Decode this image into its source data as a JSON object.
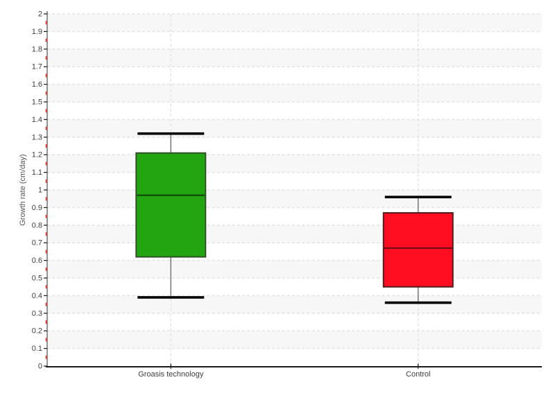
{
  "chart_data": {
    "type": "boxplot",
    "title": "",
    "ylabel": "Growth rate (cm/day)",
    "xlabel": "",
    "ylim": [
      0,
      2
    ],
    "ytick_step": 0.1,
    "minor_ytick_step": 0.05,
    "yticks": [
      0,
      0.1,
      0.2,
      0.3,
      0.4,
      0.5,
      0.6,
      0.7,
      0.8,
      0.9,
      1,
      1.1,
      1.2,
      1.3,
      1.4,
      1.5,
      1.6,
      1.7,
      1.8,
      1.9,
      2
    ],
    "yticklabels": [
      "0",
      "0.1",
      "0.2",
      "0.3",
      "0.4",
      "0.5",
      "0.6",
      "0.7",
      "0.8",
      "0.9",
      "1",
      "1.1",
      "1.2",
      "1.3",
      "1.4",
      "1.5",
      "1.6",
      "1.7",
      "1.8",
      "1.9",
      "2"
    ],
    "categories": [
      "Groasis technology",
      "Control"
    ],
    "series": [
      {
        "name": "Groasis technology",
        "min": 0.39,
        "q1": 0.62,
        "median": 0.97,
        "q3": 1.21,
        "max": 1.32,
        "fill": "#22a510",
        "border": "#31512a",
        "median_color": "#11530a"
      },
      {
        "name": "Control",
        "min": 0.36,
        "q1": 0.45,
        "median": 0.67,
        "q3": 0.87,
        "max": 0.96,
        "fill": "#ff0e21",
        "border": "#541a1c",
        "median_color": "#7a0a12"
      }
    ],
    "legend": "none",
    "grid": {
      "horizontal_dashed": true,
      "vertical_dashed_at_categories": true,
      "alternating_bands": true
    }
  },
  "colors": {
    "band": "#f7f7f7",
    "gridline": "#e3e3e3",
    "x_axis": "#1a1a1a",
    "y_axis": "#666666",
    "major_tick": "#222222",
    "minor_tick": "#ff2a1e",
    "tick_label": "#3c3c3c",
    "axis_title": "#555555",
    "category_label": "#3c3c3c",
    "whisker_stem": "#7d7d7d",
    "whisker_cap": "#000000"
  }
}
